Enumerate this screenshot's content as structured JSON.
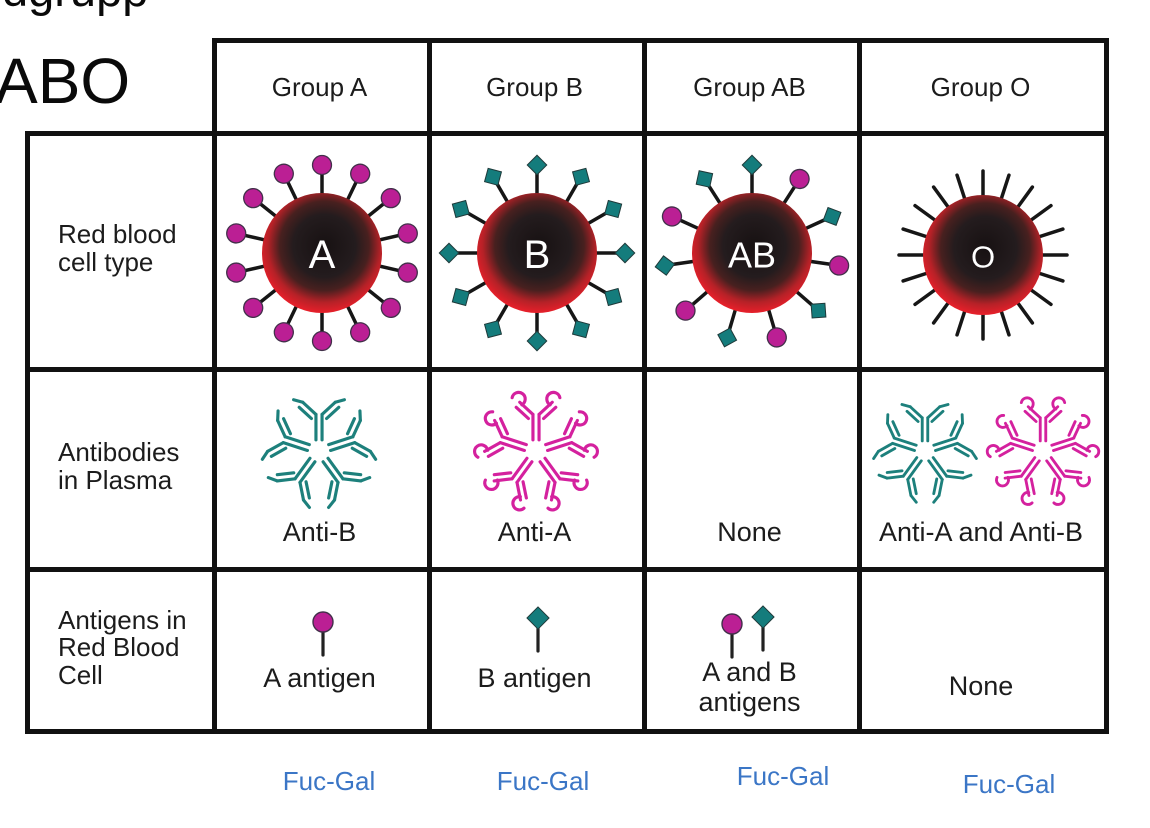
{
  "page": {
    "clipped_top_text": "dgrupp",
    "title": "ABO"
  },
  "table": {
    "row_labels": [
      "Red blood\ncell type",
      "Antibodies\nin Plasma",
      "Antigens in\nRed Blood\nCell"
    ]
  },
  "groups": [
    {
      "name": "Group A",
      "cell_letter": "A",
      "cell_marker_shape": "circle",
      "cell_marker_count": 14,
      "antibody_colors": [
        "teal"
      ],
      "antibody_label": "Anti-B",
      "antigen_shapes": [
        "circle"
      ],
      "antigen_label": "A antigen",
      "sub_label": "Fuc-Gal"
    },
    {
      "name": "Group B",
      "cell_letter": "B",
      "cell_marker_shape": "diamond",
      "cell_marker_count": 12,
      "antibody_colors": [
        "magenta"
      ],
      "antibody_label": "Anti-A",
      "antigen_shapes": [
        "diamond"
      ],
      "antigen_label": "B antigen",
      "sub_label": "Fuc-Gal"
    },
    {
      "name": "Group AB",
      "cell_letter": "AB",
      "cell_marker_shape": "mixed",
      "cell_marker_count": 11,
      "antibody_colors": [],
      "antibody_label": "None",
      "antigen_shapes": [
        "circle",
        "diamond"
      ],
      "antigen_label": "A and B\nantigens",
      "sub_label": "Fuc-Gal"
    },
    {
      "name": "Group O",
      "cell_letter": "O",
      "cell_marker_shape": "none",
      "cell_marker_count": 20,
      "antibody_colors": [
        "teal",
        "magenta"
      ],
      "antibody_label": "Anti-A and Anti-B",
      "antigen_shapes": [],
      "antigen_label": "None",
      "sub_label": "Fuc-Gal"
    }
  ],
  "colors": {
    "red_cell": "#e6202a",
    "cell_core": "#171112",
    "antigen_magenta": "#bb1f94",
    "antigen_teal": "#147c7c",
    "antibody_teal": "#1d807c",
    "antibody_magenta": "#d4219e",
    "fucgal_blue": "#3b76c6",
    "grid_line": "#111111"
  }
}
